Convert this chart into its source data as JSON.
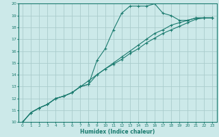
{
  "xlabel": "Humidex (Indice chaleur)",
  "ylabel": "",
  "background_color": "#cce9e9",
  "grid_color": "#aacccc",
  "line_color": "#1a7a6e",
  "xlim": [
    -0.5,
    23.5
  ],
  "ylim": [
    10,
    20
  ],
  "xticks": [
    0,
    1,
    2,
    3,
    4,
    5,
    6,
    7,
    8,
    9,
    10,
    11,
    12,
    13,
    14,
    15,
    16,
    17,
    18,
    19,
    20,
    21,
    22,
    23
  ],
  "yticks": [
    10,
    11,
    12,
    13,
    14,
    15,
    16,
    17,
    18,
    19,
    20
  ],
  "curve1_x": [
    0,
    1,
    2,
    3,
    4,
    5,
    6,
    7,
    8,
    9,
    10,
    11,
    12,
    13,
    14,
    15,
    16,
    17,
    18,
    19,
    20,
    21,
    22,
    23
  ],
  "curve1_y": [
    10.0,
    10.8,
    11.2,
    11.5,
    12.0,
    12.2,
    12.5,
    13.0,
    13.2,
    15.2,
    16.2,
    17.8,
    19.2,
    19.8,
    19.8,
    19.8,
    20.0,
    19.2,
    19.0,
    18.6,
    18.6,
    18.8,
    18.8,
    18.8
  ],
  "curve2_x": [
    0,
    1,
    2,
    3,
    4,
    5,
    6,
    7,
    8,
    9,
    10,
    11,
    12,
    13,
    14,
    15,
    16,
    17,
    18,
    19,
    20,
    21,
    22,
    23
  ],
  "curve2_y": [
    10.0,
    10.8,
    11.2,
    11.5,
    12.0,
    12.2,
    12.5,
    13.0,
    13.2,
    14.0,
    14.5,
    15.0,
    15.5,
    16.0,
    16.5,
    17.0,
    17.5,
    17.8,
    18.2,
    18.4,
    18.6,
    18.8,
    18.8,
    18.8
  ],
  "curve3_x": [
    0,
    1,
    2,
    3,
    4,
    5,
    6,
    7,
    8,
    9,
    10,
    11,
    12,
    13,
    14,
    15,
    16,
    17,
    18,
    19,
    20,
    21,
    22,
    23
  ],
  "curve3_y": [
    10.0,
    10.8,
    11.2,
    11.5,
    12.0,
    12.2,
    12.5,
    13.0,
    13.5,
    14.0,
    14.5,
    14.9,
    15.3,
    15.8,
    16.2,
    16.7,
    17.1,
    17.5,
    17.8,
    18.1,
    18.4,
    18.7,
    18.8,
    18.8
  ]
}
